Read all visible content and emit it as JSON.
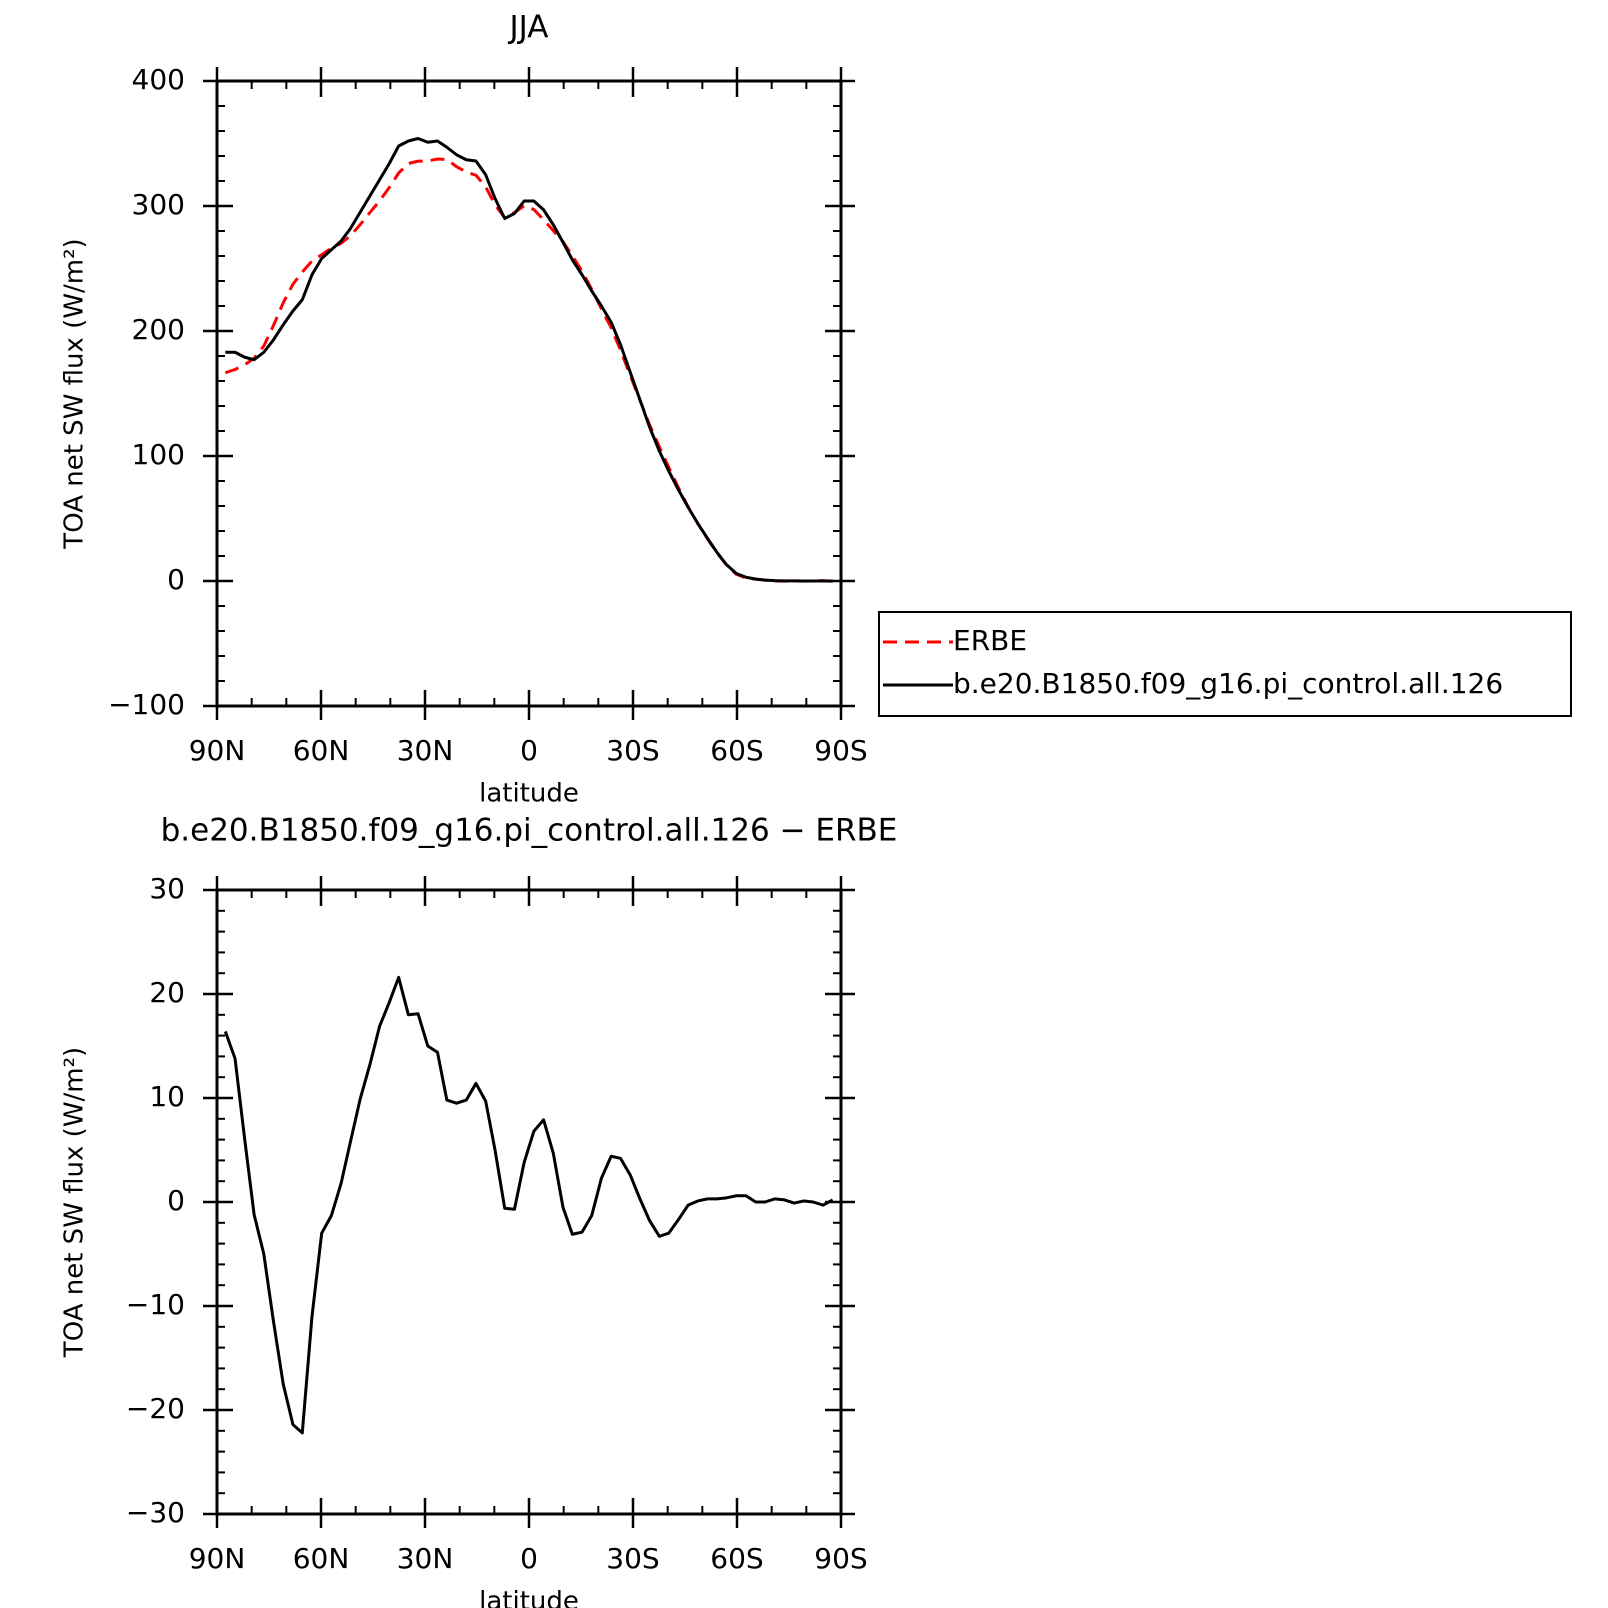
{
  "chart_data": [
    {
      "type": "line",
      "title": "JJA",
      "xlabel": "latitude",
      "ylabel": "TOA net SW flux (W/m²)",
      "x": [
        87.6,
        84.8,
        82.0,
        79.3,
        76.5,
        73.7,
        70.9,
        68.1,
        65.4,
        62.6,
        59.8,
        57.0,
        54.2,
        51.5,
        48.7,
        45.9,
        43.1,
        40.3,
        37.6,
        34.8,
        32.0,
        29.2,
        26.4,
        23.7,
        20.9,
        18.1,
        15.3,
        12.5,
        9.8,
        7.0,
        4.2,
        1.4,
        -1.4,
        -4.2,
        -7.0,
        -9.8,
        -12.5,
        -15.3,
        -18.1,
        -20.9,
        -23.7,
        -26.4,
        -29.2,
        -32.0,
        -34.8,
        -37.6,
        -40.3,
        -43.1,
        -45.9,
        -48.7,
        -51.5,
        -54.2,
        -57.0,
        -59.8,
        -62.6,
        -65.4,
        -68.1,
        -70.9,
        -73.7,
        -76.5,
        -79.3,
        -82.0,
        -84.8,
        -87.6
      ],
      "series": [
        {
          "name": "ERBE",
          "color": "#ff0000",
          "line_style": "dashed",
          "values": [
            166.6,
            169.2,
            173,
            178.2,
            188,
            204.5,
            222.5,
            237.4,
            247.2,
            256,
            261,
            266.3,
            270.2,
            276.2,
            285.1,
            294.8,
            304.1,
            314.8,
            326.4,
            334,
            335.9,
            336,
            337.6,
            337.2,
            331.5,
            327.2,
            324.6,
            315.3,
            301,
            290.6,
            294.7,
            300.2,
            297.2,
            289.1,
            280.3,
            271.5,
            260.1,
            247.9,
            233.3,
            217.7,
            202.6,
            184.8,
            164.4,
            144.7,
            124.8,
            107.3,
            91,
            74.7,
            59.3,
            45.9,
            33.7,
            22.7,
            12.6,
            5.4,
            2.4,
            1.5,
            0.7,
            0,
            -0.1,
            0.2,
            -0.1,
            0,
            0.3,
            -0.2
          ]
        },
        {
          "name": "b.e20.B1850.f09_g16.pi_control.all.126",
          "color": "#000000",
          "line_style": "solid",
          "values": [
            183,
            183,
            179,
            177,
            183,
            193,
            205,
            216,
            225,
            245,
            258,
            265,
            272,
            282,
            295,
            308,
            321,
            334,
            348,
            352,
            354,
            351,
            352,
            347,
            341,
            337,
            336,
            325,
            306,
            290,
            294,
            304,
            304,
            297,
            285,
            271,
            257,
            245,
            232,
            220,
            207,
            189,
            167,
            145,
            123,
            104,
            88,
            73,
            59,
            46,
            34,
            23,
            13,
            6,
            3,
            1.5,
            0.7,
            0.3,
            0.1,
            0.1,
            0,
            0,
            0,
            0
          ]
        }
      ],
      "xlim": [
        90,
        -90
      ],
      "xticks": [
        {
          "value": 90,
          "label": "90N"
        },
        {
          "value": 60,
          "label": "60N"
        },
        {
          "value": 30,
          "label": "30N"
        },
        0,
        {
          "value": -30,
          "label": "30S"
        },
        {
          "value": -60,
          "label": "60S"
        },
        {
          "value": -90,
          "label": "90S"
        }
      ],
      "ylim": [
        -100,
        400
      ],
      "yticks": [
        {
          "value": -100,
          "label": "−100"
        },
        0,
        100,
        200,
        300,
        400
      ],
      "grid": false,
      "legend": "right"
    },
    {
      "type": "line",
      "title": "b.e20.B1850.f09_g16.pi_control.all.126 − ERBE",
      "xlabel": "latitude",
      "ylabel": "TOA net SW flux (W/m²)",
      "x": [
        87.6,
        84.8,
        82.0,
        79.3,
        76.5,
        73.7,
        70.9,
        68.1,
        65.4,
        62.6,
        59.8,
        57.0,
        54.2,
        51.5,
        48.7,
        45.9,
        43.1,
        40.3,
        37.6,
        34.8,
        32.0,
        29.2,
        26.4,
        23.7,
        20.9,
        18.1,
        15.3,
        12.5,
        9.8,
        7.0,
        4.2,
        1.4,
        -1.4,
        -4.2,
        -7.0,
        -9.8,
        -12.5,
        -15.3,
        -18.1,
        -20.9,
        -23.7,
        -26.4,
        -29.2,
        -32.0,
        -34.8,
        -37.6,
        -40.3,
        -43.1,
        -45.9,
        -48.7,
        -51.5,
        -54.2,
        -57.0,
        -59.8,
        -62.6,
        -65.4,
        -68.1,
        -70.9,
        -73.7,
        -76.5,
        -79.3,
        -82.0,
        -84.8,
        -87.6
      ],
      "color": "#000000",
      "values": [
        16.4,
        13.8,
        6,
        -1.2,
        -5,
        -11.5,
        -17.5,
        -21.4,
        -22.2,
        -11,
        -3,
        -1.3,
        1.8,
        5.8,
        9.9,
        13.2,
        16.9,
        19.2,
        21.6,
        18,
        18.1,
        15,
        14.4,
        9.8,
        9.5,
        9.8,
        11.4,
        9.7,
        5,
        -0.6,
        -0.7,
        3.8,
        6.8,
        7.9,
        4.7,
        -0.5,
        -3.1,
        -2.9,
        -1.3,
        2.3,
        4.4,
        4.2,
        2.6,
        0.3,
        -1.8,
        -3.3,
        -3,
        -1.7,
        -0.3,
        0.1,
        0.3,
        0.3,
        0.4,
        0.6,
        0.6,
        0,
        0,
        0.3,
        0.2,
        -0.1,
        0.1,
        0,
        -0.3,
        0.2
      ],
      "xlim": [
        90,
        -90
      ],
      "xticks": [
        {
          "value": 90,
          "label": "90N"
        },
        {
          "value": 60,
          "label": "60N"
        },
        {
          "value": 30,
          "label": "30N"
        },
        0,
        {
          "value": -30,
          "label": "30S"
        },
        {
          "value": -60,
          "label": "60S"
        },
        {
          "value": -90,
          "label": "90S"
        }
      ],
      "ylim": [
        -30,
        30
      ],
      "yticks": [
        {
          "value": -30,
          "label": "−30"
        },
        {
          "value": -20,
          "label": "−20"
        },
        {
          "value": -10,
          "label": "−10"
        },
        0,
        10,
        20,
        30
      ],
      "grid": false
    }
  ]
}
